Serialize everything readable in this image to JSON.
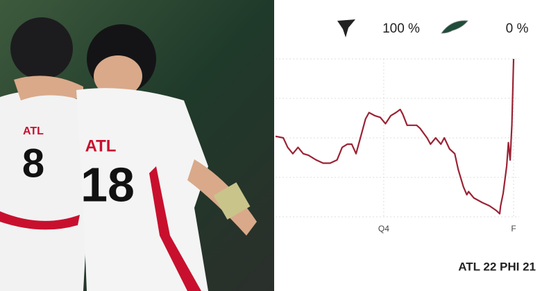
{
  "photo": {
    "jersey_texts": [
      "ATL",
      "18",
      "ATL",
      "8"
    ]
  },
  "chart_data": {
    "type": "line",
    "header_labels": [
      "100 %",
      "0 %"
    ],
    "score": "ATL 22 PHI 21",
    "color": "#9b2335",
    "x": [
      32.5,
      33.4,
      33.9,
      34.5,
      35.1,
      35.7,
      36.3,
      37.2,
      38.0,
      38.8,
      39.6,
      40.2,
      40.8,
      41.3,
      41.8,
      42.4,
      42.9,
      43.3,
      44.0,
      44.6,
      45.2,
      45.8,
      46.4,
      46.9,
      47.2,
      47.7,
      48.8,
      49.2,
      50.0,
      50.4,
      51.0,
      51.6,
      52.0,
      52.6,
      53.2,
      53.6,
      54.2,
      54.6,
      54.8,
      55.4,
      56.4,
      57.2,
      58.0,
      58.4,
      58.5,
      58.8,
      59.2,
      59.4,
      59.6,
      59.8,
      60.0
    ],
    "values": [
      51,
      50,
      44,
      40,
      44,
      40,
      39,
      36,
      34,
      34,
      36,
      44,
      46,
      46,
      40,
      52,
      62,
      66,
      64,
      63,
      59,
      64,
      66,
      68,
      65,
      58,
      58,
      56,
      50,
      46,
      50,
      46,
      50,
      43,
      40,
      30,
      19,
      14,
      16,
      12,
      9,
      7,
      4,
      2,
      7,
      15,
      32,
      47,
      36,
      58,
      100
    ],
    "xlim": [
      32.5,
      60
    ],
    "xticks": [
      {
        "value": 45,
        "label": "Q4"
      },
      {
        "value": 60,
        "label": "F"
      }
    ],
    "ylim": [
      0,
      100
    ],
    "yticks": [
      0,
      25,
      50,
      75,
      100
    ],
    "grid": true
  }
}
